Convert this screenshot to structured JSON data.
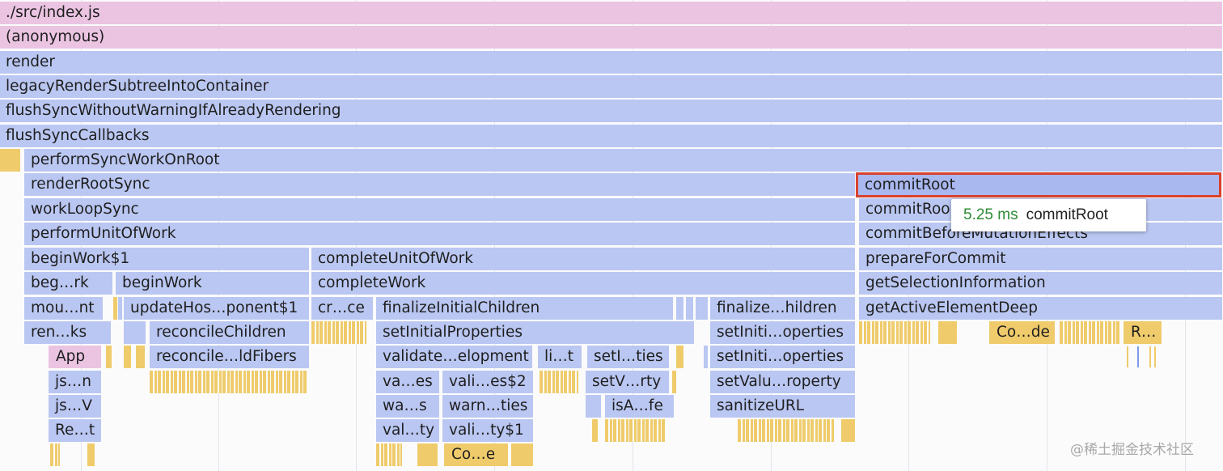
{
  "flame": {
    "bars": [
      {
        "label": "./src/index.js",
        "color": "pink"
      },
      {
        "label": "(anonymous)",
        "color": "pink"
      },
      {
        "label": "render",
        "color": "blue"
      },
      {
        "label": "legacyRenderSubtreeIntoContainer",
        "color": "blue"
      },
      {
        "label": "flushSyncWithoutWarningIfAlreadyRendering",
        "color": "blue"
      },
      {
        "label": "flushSyncCallbacks",
        "color": "blue"
      },
      {
        "label": "performSyncWorkOnRoot",
        "color": "blue"
      },
      {
        "label": "renderRootSync",
        "color": "blue"
      },
      {
        "label": "commitRoot",
        "color": "blue",
        "selected": true
      },
      {
        "label": "workLoopSync",
        "color": "blue"
      },
      {
        "label": "commitRoo",
        "color": "blue"
      },
      {
        "label": "performUnitOfWork",
        "color": "blue"
      },
      {
        "label": "commitBeforeMutationEffects",
        "color": "blue"
      },
      {
        "label": "beginWork$1",
        "color": "blue"
      },
      {
        "label": "completeUnitOfWork",
        "color": "blue"
      },
      {
        "label": "prepareForCommit",
        "color": "blue"
      },
      {
        "label": "beg…rk",
        "color": "blue"
      },
      {
        "label": "beginWork",
        "color": "blue"
      },
      {
        "label": "completeWork",
        "color": "blue"
      },
      {
        "label": "getSelectionInformation",
        "color": "blue"
      },
      {
        "label": "mou…nt",
        "color": "blue"
      },
      {
        "label": "updateHos…ponent$1",
        "color": "blue"
      },
      {
        "label": "cr…ce",
        "color": "blue"
      },
      {
        "label": "finalizeInitialChildren",
        "color": "blue"
      },
      {
        "label": "finalize…hildren",
        "color": "blue"
      },
      {
        "label": "getActiveElementDeep",
        "color": "blue"
      },
      {
        "label": "ren…ks",
        "color": "blue"
      },
      {
        "label": "reconcileChildren",
        "color": "blue"
      },
      {
        "label": "setInitialProperties",
        "color": "blue"
      },
      {
        "label": "setIniti…operties",
        "color": "blue"
      },
      {
        "label": "Co…de",
        "color": "yellow"
      },
      {
        "label": "R…",
        "color": "yellow"
      },
      {
        "label": "App",
        "color": "pink"
      },
      {
        "label": "reconcile…ldFibers",
        "color": "blue"
      },
      {
        "label": "validate…elopment",
        "color": "blue"
      },
      {
        "label": "li…t",
        "color": "blue"
      },
      {
        "label": "setI…ties",
        "color": "blue"
      },
      {
        "label": "setIniti…operties",
        "color": "blue"
      },
      {
        "label": "js…n",
        "color": "blue"
      },
      {
        "label": "va…es",
        "color": "blue"
      },
      {
        "label": "vali…es$2",
        "color": "blue"
      },
      {
        "label": "setV…rty",
        "color": "blue"
      },
      {
        "label": "setValu…roperty",
        "color": "blue"
      },
      {
        "label": "js…V",
        "color": "blue"
      },
      {
        "label": "wa…s",
        "color": "blue"
      },
      {
        "label": "warn…ties",
        "color": "blue"
      },
      {
        "label": "isA…fe",
        "color": "blue"
      },
      {
        "label": "sanitizeURL",
        "color": "blue"
      },
      {
        "label": "Re…t",
        "color": "blue"
      },
      {
        "label": "val…ty",
        "color": "blue"
      },
      {
        "label": "vali…ty$1",
        "color": "blue"
      },
      {
        "label": "Co…e",
        "color": "yellow"
      }
    ]
  },
  "tooltip": {
    "duration": "5.25 ms",
    "name": "commitRoot"
  },
  "watermark": "@稀土掘金技术社区"
}
